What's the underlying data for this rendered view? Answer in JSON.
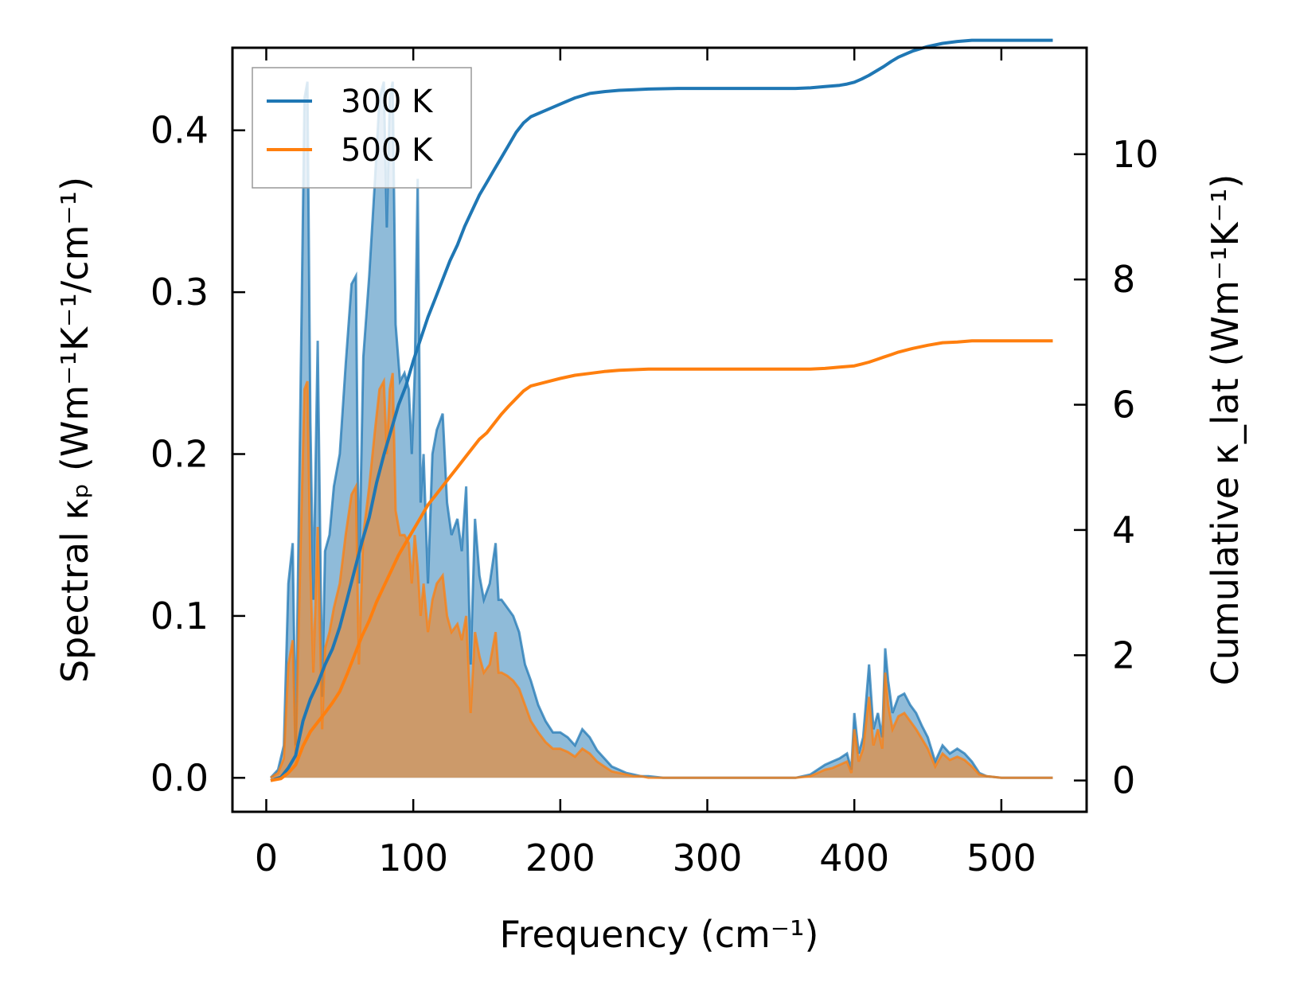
{
  "chart_data": {
    "type": "line",
    "xlabel": "Frequency (cm⁻¹)",
    "ylabel_left": "Spectral κₚ (Wm⁻¹K⁻¹/cm⁻¹)",
    "ylabel_right": "Cumulative κ_lat (Wm⁻¹K⁻¹)",
    "xlim": [
      -23,
      558
    ],
    "ylim_left": [
      -0.021,
      0.451
    ],
    "ylim_right": [
      -0.5,
      11.7
    ],
    "x_ticks": [
      0,
      100,
      200,
      300,
      400,
      500
    ],
    "y_ticks_left": [
      0.0,
      0.1,
      0.2,
      0.3,
      0.4
    ],
    "y_ticks_right": [
      0,
      2,
      4,
      6,
      8,
      10
    ],
    "x_tick_labels": [
      "0",
      "100",
      "200",
      "300",
      "400",
      "500"
    ],
    "y_tick_labels_left": [
      "0.0",
      "0.1",
      "0.2",
      "0.3",
      "0.4"
    ],
    "y_tick_labels_right": [
      "0",
      "2",
      "4",
      "6",
      "8",
      "10"
    ],
    "legend_position": "top-left",
    "grid": false,
    "series": [
      {
        "name": "300 K",
        "color": "#1f77b4",
        "spectral": {
          "x": [
            3,
            8,
            12,
            15,
            18,
            20,
            23,
            26,
            28,
            30,
            32,
            35,
            38,
            40,
            43,
            46,
            50,
            54,
            58,
            61,
            63,
            66,
            70,
            74,
            77,
            80,
            82,
            84,
            86,
            88,
            91,
            94,
            97,
            99,
            101,
            103,
            105,
            107,
            110,
            113,
            116,
            120,
            123,
            126,
            130,
            133,
            136,
            139,
            142,
            145,
            148,
            152,
            156,
            158,
            160,
            164,
            168,
            172,
            176,
            180,
            185,
            190,
            195,
            200,
            205,
            210,
            215,
            220,
            225,
            230,
            235,
            240,
            245,
            250,
            255,
            260,
            270,
            280,
            290,
            300,
            320,
            340,
            360,
            370,
            375,
            380,
            385,
            390,
            395,
            398,
            400,
            403,
            406,
            410,
            413,
            416,
            419,
            421,
            423,
            426,
            430,
            434,
            438,
            442,
            446,
            450,
            455,
            460,
            465,
            470,
            475,
            480,
            485,
            490,
            500,
            510,
            520,
            535
          ],
          "y": [
            0.0,
            0.005,
            0.02,
            0.12,
            0.145,
            0.02,
            0.22,
            0.42,
            0.43,
            0.22,
            0.11,
            0.27,
            0.05,
            0.14,
            0.15,
            0.18,
            0.2,
            0.255,
            0.305,
            0.31,
            0.12,
            0.26,
            0.31,
            0.37,
            0.42,
            0.43,
            0.34,
            0.42,
            0.43,
            0.28,
            0.245,
            0.25,
            0.24,
            0.2,
            0.25,
            0.37,
            0.17,
            0.2,
            0.12,
            0.2,
            0.215,
            0.225,
            0.17,
            0.15,
            0.16,
            0.14,
            0.18,
            0.07,
            0.16,
            0.125,
            0.11,
            0.12,
            0.145,
            0.11,
            0.11,
            0.105,
            0.1,
            0.09,
            0.07,
            0.06,
            0.045,
            0.035,
            0.028,
            0.028,
            0.025,
            0.02,
            0.03,
            0.025,
            0.017,
            0.012,
            0.007,
            0.005,
            0.003,
            0.002,
            0.001,
            0.001,
            0.0,
            0.0,
            0.0,
            0.0,
            0.0,
            0.0,
            0.0,
            0.002,
            0.005,
            0.008,
            0.01,
            0.012,
            0.015,
            0.005,
            0.04,
            0.015,
            0.025,
            0.07,
            0.03,
            0.04,
            0.025,
            0.08,
            0.06,
            0.04,
            0.05,
            0.052,
            0.045,
            0.04,
            0.032,
            0.025,
            0.01,
            0.02,
            0.015,
            0.018,
            0.015,
            0.01,
            0.003,
            0.001,
            0.0,
            0.0,
            0.0,
            0.0
          ]
        },
        "cumulative": {
          "x": [
            3,
            10,
            15,
            20,
            25,
            30,
            35,
            40,
            45,
            50,
            55,
            60,
            65,
            70,
            75,
            80,
            85,
            90,
            95,
            100,
            105,
            110,
            115,
            120,
            125,
            130,
            135,
            140,
            145,
            150,
            155,
            160,
            165,
            170,
            175,
            180,
            190,
            200,
            210,
            220,
            230,
            240,
            250,
            260,
            280,
            300,
            320,
            340,
            360,
            370,
            380,
            390,
            395,
            400,
            405,
            410,
            415,
            420,
            425,
            430,
            440,
            450,
            460,
            470,
            480,
            490,
            500,
            510,
            520,
            535
          ],
          "cumulative_values": [
            0.0,
            0.05,
            0.2,
            0.4,
            0.95,
            1.3,
            1.55,
            1.85,
            2.1,
            2.45,
            2.9,
            3.35,
            3.8,
            4.2,
            4.75,
            5.2,
            5.6,
            6.0,
            6.3,
            6.7,
            7.05,
            7.4,
            7.7,
            8.0,
            8.3,
            8.55,
            8.85,
            9.1,
            9.35,
            9.55,
            9.75,
            9.95,
            10.15,
            10.35,
            10.5,
            10.6,
            10.7,
            10.8,
            10.9,
            10.97,
            11.0,
            11.02,
            11.03,
            11.04,
            11.05,
            11.05,
            11.05,
            11.05,
            11.05,
            11.06,
            11.08,
            11.1,
            11.12,
            11.15,
            11.2,
            11.26,
            11.33,
            11.4,
            11.48,
            11.55,
            11.65,
            11.72,
            11.77,
            11.8,
            11.82,
            11.82,
            11.82,
            11.82,
            11.82,
            11.82
          ]
        }
      },
      {
        "name": "500 K",
        "color": "#ff7f0e",
        "spectral": {
          "x": [
            3,
            8,
            12,
            15,
            18,
            20,
            23,
            26,
            28,
            30,
            32,
            35,
            38,
            40,
            43,
            46,
            50,
            54,
            58,
            61,
            63,
            66,
            70,
            74,
            77,
            80,
            82,
            84,
            86,
            88,
            91,
            94,
            97,
            99,
            101,
            103,
            105,
            107,
            110,
            113,
            116,
            120,
            123,
            126,
            130,
            133,
            136,
            139,
            142,
            145,
            148,
            152,
            156,
            158,
            160,
            164,
            168,
            172,
            176,
            180,
            185,
            190,
            195,
            200,
            205,
            210,
            215,
            220,
            225,
            230,
            235,
            240,
            245,
            250,
            255,
            260,
            270,
            280,
            290,
            300,
            320,
            340,
            360,
            370,
            375,
            380,
            385,
            390,
            395,
            398,
            400,
            403,
            406,
            410,
            413,
            416,
            419,
            421,
            423,
            426,
            430,
            434,
            438,
            442,
            446,
            450,
            455,
            460,
            465,
            470,
            475,
            480,
            485,
            490,
            500,
            510,
            520,
            535
          ],
          "y": [
            0.0,
            0.003,
            0.012,
            0.07,
            0.085,
            0.012,
            0.13,
            0.24,
            0.245,
            0.13,
            0.065,
            0.155,
            0.03,
            0.08,
            0.09,
            0.105,
            0.12,
            0.15,
            0.175,
            0.18,
            0.07,
            0.15,
            0.18,
            0.215,
            0.24,
            0.245,
            0.2,
            0.24,
            0.25,
            0.165,
            0.15,
            0.15,
            0.145,
            0.12,
            0.15,
            0.13,
            0.1,
            0.12,
            0.09,
            0.11,
            0.12,
            0.125,
            0.1,
            0.09,
            0.095,
            0.085,
            0.1,
            0.04,
            0.09,
            0.075,
            0.065,
            0.07,
            0.09,
            0.065,
            0.065,
            0.063,
            0.06,
            0.055,
            0.045,
            0.035,
            0.028,
            0.022,
            0.018,
            0.018,
            0.016,
            0.013,
            0.018,
            0.015,
            0.01,
            0.007,
            0.004,
            0.003,
            0.002,
            0.001,
            0.001,
            0.0,
            0.0,
            0.0,
            0.0,
            0.0,
            0.0,
            0.0,
            0.0,
            0.001,
            0.003,
            0.005,
            0.006,
            0.008,
            0.01,
            0.003,
            0.03,
            0.01,
            0.018,
            0.05,
            0.02,
            0.03,
            0.018,
            0.065,
            0.045,
            0.03,
            0.038,
            0.04,
            0.035,
            0.03,
            0.024,
            0.018,
            0.007,
            0.015,
            0.011,
            0.013,
            0.011,
            0.007,
            0.002,
            0.001,
            0.0,
            0.0,
            0.0,
            0.0
          ]
        },
        "cumulative": {
          "x": [
            3,
            10,
            15,
            20,
            25,
            30,
            35,
            40,
            45,
            50,
            55,
            60,
            65,
            70,
            75,
            80,
            85,
            90,
            95,
            100,
            105,
            110,
            115,
            120,
            125,
            130,
            135,
            140,
            145,
            150,
            155,
            160,
            165,
            170,
            175,
            180,
            190,
            200,
            210,
            220,
            230,
            240,
            250,
            260,
            280,
            300,
            320,
            340,
            360,
            370,
            380,
            390,
            395,
            400,
            405,
            410,
            415,
            420,
            425,
            430,
            440,
            450,
            460,
            470,
            480,
            490,
            500,
            510,
            520,
            535
          ],
          "cumulative_values": [
            0.0,
            0.03,
            0.12,
            0.25,
            0.55,
            0.78,
            0.93,
            1.08,
            1.24,
            1.42,
            1.7,
            2.0,
            2.3,
            2.55,
            2.85,
            3.1,
            3.35,
            3.6,
            3.8,
            4.0,
            4.2,
            4.4,
            4.55,
            4.7,
            4.85,
            5.0,
            5.15,
            5.3,
            5.45,
            5.55,
            5.7,
            5.85,
            5.98,
            6.1,
            6.22,
            6.3,
            6.36,
            6.42,
            6.47,
            6.5,
            6.53,
            6.55,
            6.56,
            6.57,
            6.57,
            6.57,
            6.57,
            6.57,
            6.57,
            6.57,
            6.58,
            6.6,
            6.61,
            6.62,
            6.65,
            6.68,
            6.72,
            6.76,
            6.8,
            6.84,
            6.9,
            6.95,
            6.99,
            7.0,
            7.02,
            7.02,
            7.02,
            7.02,
            7.02,
            7.02
          ]
        }
      }
    ]
  }
}
